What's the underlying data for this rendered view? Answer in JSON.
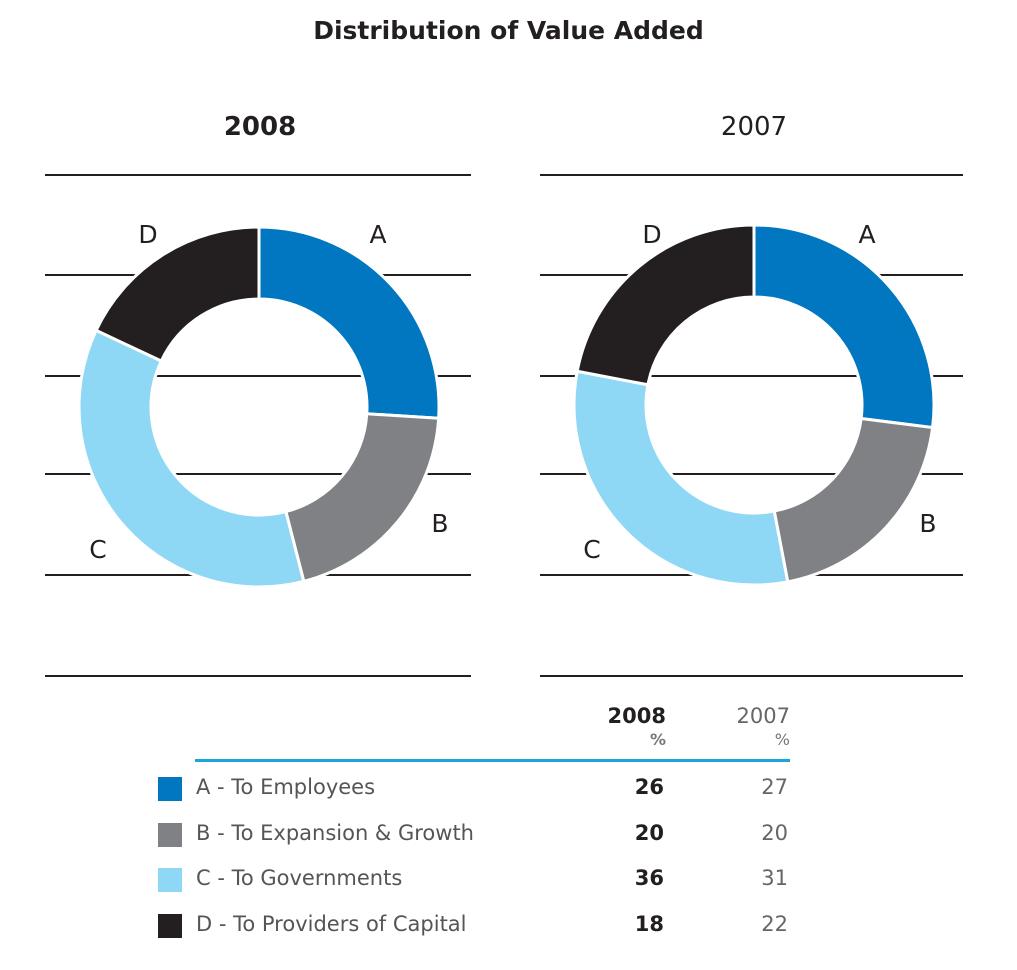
{
  "chart_data": [
    {
      "type": "pie",
      "title": "Distribution of Value Added",
      "subtitle": "2008",
      "categories": [
        "A",
        "B",
        "C",
        "D"
      ],
      "values": [
        26,
        20,
        36,
        18
      ],
      "unit": "%"
    },
    {
      "type": "pie",
      "title": "Distribution of Value Added",
      "subtitle": "2007",
      "categories": [
        "A",
        "B",
        "C",
        "D"
      ],
      "values": [
        27,
        20,
        31,
        22
      ],
      "unit": "%"
    }
  ],
  "title": "Distribution of Value Added",
  "years": [
    "2008",
    "2007"
  ],
  "colors": {
    "A": "#0077c0",
    "B": "#808184",
    "C": "#8fd8f5",
    "D": "#231f20",
    "rule": "#1aa7d8"
  },
  "table": {
    "headers": [
      {
        "year": "2008",
        "unit": "%"
      },
      {
        "year": "2007",
        "unit": "%"
      }
    ],
    "rows": [
      {
        "key": "A",
        "label": "A - To Employees",
        "v2008": "26",
        "v2007": "27"
      },
      {
        "key": "B",
        "label": "B - To Expansion & Growth",
        "v2008": "20",
        "v2007": "20"
      },
      {
        "key": "C",
        "label": "C - To Governments",
        "v2008": "36",
        "v2007": "31"
      },
      {
        "key": "D",
        "label": "D - To Providers of Capital",
        "v2008": "18",
        "v2007": "22"
      }
    ]
  }
}
